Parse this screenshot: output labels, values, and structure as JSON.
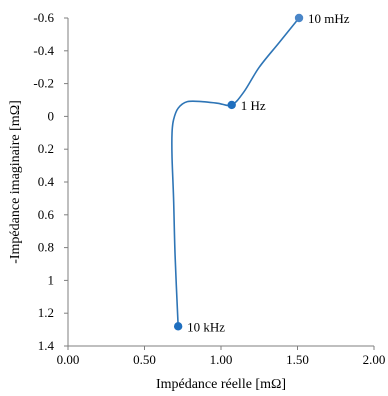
{
  "chart_data": {
    "type": "line",
    "title": "",
    "xlabel": "Impédance réelle [mΩ]",
    "ylabel": "-Impédance imaginaire [mΩ]",
    "xlim": [
      0,
      2
    ],
    "ylim": [
      -0.6,
      1.4
    ],
    "y_inverted": true,
    "grid": false,
    "legend": "none",
    "x_ticks": [
      "0.00",
      "0.50",
      "1.00",
      "1.50",
      "2.00"
    ],
    "y_ticks": [
      "-0.6",
      "-0.4",
      "-0.2",
      "0",
      "0.2",
      "0.4",
      "0.6",
      "0.8",
      "1",
      "1.2",
      "1.4"
    ],
    "x_tick_values": [
      0,
      0.5,
      1,
      1.5,
      2
    ],
    "y_tick_values": [
      -0.6,
      -0.4,
      -0.2,
      0,
      0.2,
      0.4,
      0.6,
      0.8,
      1,
      1.2,
      1.4
    ],
    "series": [
      {
        "color": "#2e75b6",
        "x": [
          0.72,
          0.7,
          0.69,
          0.68,
          0.68,
          0.69,
          0.72,
          0.78,
          0.88,
          0.98,
          1.07,
          1.15,
          1.25,
          1.38,
          1.51
        ],
        "y": [
          1.28,
          0.85,
          0.5,
          0.25,
          0.1,
          0.02,
          -0.05,
          -0.09,
          -0.09,
          -0.08,
          -0.07,
          -0.15,
          -0.3,
          -0.45,
          -0.6
        ]
      }
    ],
    "markers": [
      {
        "label": "10 kHz",
        "x": 0.72,
        "y": 1.28,
        "color": "#1f6fbf"
      },
      {
        "label": "1 Hz",
        "x": 1.07,
        "y": -0.07,
        "color": "#1f6fbf"
      },
      {
        "label": "10 mHz",
        "x": 1.51,
        "y": -0.6,
        "color": "#4a86c8"
      }
    ]
  }
}
